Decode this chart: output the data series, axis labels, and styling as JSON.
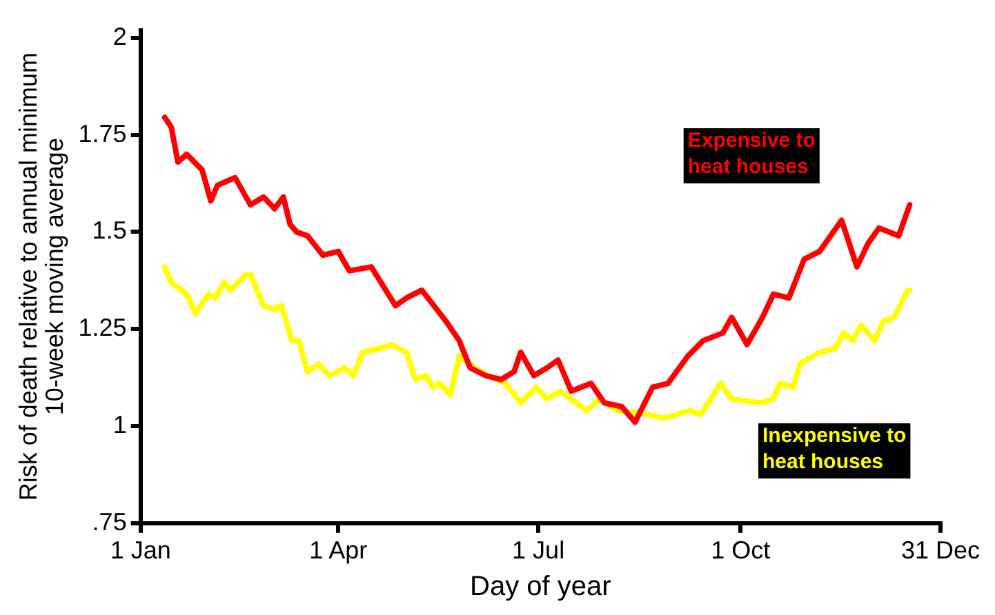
{
  "chart_data": {
    "type": "line",
    "xlabel": "Day of year",
    "ylabel": "Risk of death relative to annual minimum\n10-week moving average",
    "xlim": [
      "--01-01",
      "--12-31"
    ],
    "xticks": [
      {
        "value": "--01-01",
        "label": "1 Jan"
      },
      {
        "value": "--04-01",
        "label": "1 Apr"
      },
      {
        "value": "--07-01",
        "label": "1 Jul"
      },
      {
        "value": "--10-01",
        "label": "1 Oct"
      },
      {
        "value": "--12-31",
        "label": "31 Dec"
      }
    ],
    "ylim": [
      0.75,
      2.02
    ],
    "yticks": [
      {
        "value": 0.75,
        "label": ".75"
      },
      1,
      1.25,
      1.5,
      1.75,
      2
    ],
    "grid": false,
    "legend": false,
    "marker": "none",
    "line_style": "solid",
    "series": [
      {
        "name": "Expensive to heat houses",
        "color": "#ff0000",
        "x": [
          "--01-12",
          "--01-15",
          "--01-18",
          "--01-22",
          "--01-29",
          "--02-02",
          "--02-05",
          "--02-13",
          "--02-17",
          "--02-20",
          "--02-26",
          "--03-03",
          "--03-07",
          "--03-10",
          "--03-13",
          "--03-18",
          "--03-25",
          "--04-01",
          "--04-06",
          "--04-16",
          "--04-27",
          "--05-02",
          "--05-09",
          "--05-20",
          "--05-26",
          "--05-31",
          "--06-07",
          "--06-14",
          "--06-20",
          "--06-23",
          "--06-29",
          "--07-05",
          "--07-10",
          "--07-16",
          "--07-25",
          "--07-31",
          "--08-08",
          "--08-14",
          "--08-22",
          "--08-29",
          "--09-07",
          "--09-14",
          "--09-23",
          "--09-27",
          "--10-04",
          "--10-11",
          "--10-16",
          "--10-23",
          "--10-30",
          "--11-06",
          "--11-16",
          "--11-23",
          "--11-28",
          "--12-03",
          "--12-12",
          "--12-17"
        ],
        "values": [
          1.795,
          1.77,
          1.68,
          1.7,
          1.66,
          1.58,
          1.62,
          1.64,
          1.6,
          1.57,
          1.59,
          1.56,
          1.59,
          1.52,
          1.5,
          1.49,
          1.44,
          1.45,
          1.4,
          1.41,
          1.31,
          1.33,
          1.35,
          1.27,
          1.22,
          1.15,
          1.13,
          1.12,
          1.14,
          1.19,
          1.13,
          1.15,
          1.17,
          1.09,
          1.11,
          1.06,
          1.05,
          1.01,
          1.1,
          1.11,
          1.18,
          1.22,
          1.24,
          1.28,
          1.21,
          1.28,
          1.34,
          1.33,
          1.43,
          1.45,
          1.53,
          1.41,
          1.47,
          1.51,
          1.49,
          1.57
        ]
      },
      {
        "name": "Inexpensive to heat houses",
        "color": "#ffff00",
        "x": [
          "--01-12",
          "--01-15",
          "--01-22",
          "--01-26",
          "--02-01",
          "--02-04",
          "--02-08",
          "--02-11",
          "--02-18",
          "--02-20",
          "--02-26",
          "--03-03",
          "--03-06",
          "--03-11",
          "--03-14",
          "--03-18",
          "--03-23",
          "--03-28",
          "--04-04",
          "--04-08",
          "--04-12",
          "--04-20",
          "--04-25",
          "--05-02",
          "--05-06",
          "--05-11",
          "--05-14",
          "--05-17",
          "--05-22",
          "--05-26",
          "--06-02",
          "--06-12",
          "--06-16",
          "--06-23",
          "--06-30",
          "--07-05",
          "--07-11",
          "--07-23",
          "--07-29",
          "--08-06",
          "--08-20",
          "--08-27",
          "--09-08",
          "--09-13",
          "--09-22",
          "--09-27",
          "--10-10",
          "--10-16",
          "--10-19",
          "--10-25",
          "--10-28",
          "--11-06",
          "--11-13",
          "--11-17",
          "--11-21",
          "--11-25",
          "--12-01",
          "--12-05",
          "--12-10",
          "--12-16",
          "--12-17"
        ],
        "values": [
          1.41,
          1.37,
          1.34,
          1.29,
          1.34,
          1.33,
          1.37,
          1.35,
          1.39,
          1.39,
          1.31,
          1.3,
          1.31,
          1.22,
          1.22,
          1.14,
          1.16,
          1.13,
          1.15,
          1.13,
          1.19,
          1.2,
          1.21,
          1.19,
          1.12,
          1.13,
          1.1,
          1.11,
          1.08,
          1.18,
          1.15,
          1.12,
          1.11,
          1.06,
          1.1,
          1.07,
          1.09,
          1.04,
          1.07,
          1.04,
          1.03,
          1.02,
          1.04,
          1.03,
          1.11,
          1.07,
          1.06,
          1.07,
          1.11,
          1.1,
          1.16,
          1.19,
          1.2,
          1.24,
          1.22,
          1.26,
          1.22,
          1.27,
          1.28,
          1.35,
          1.35
        ]
      }
    ]
  }
}
